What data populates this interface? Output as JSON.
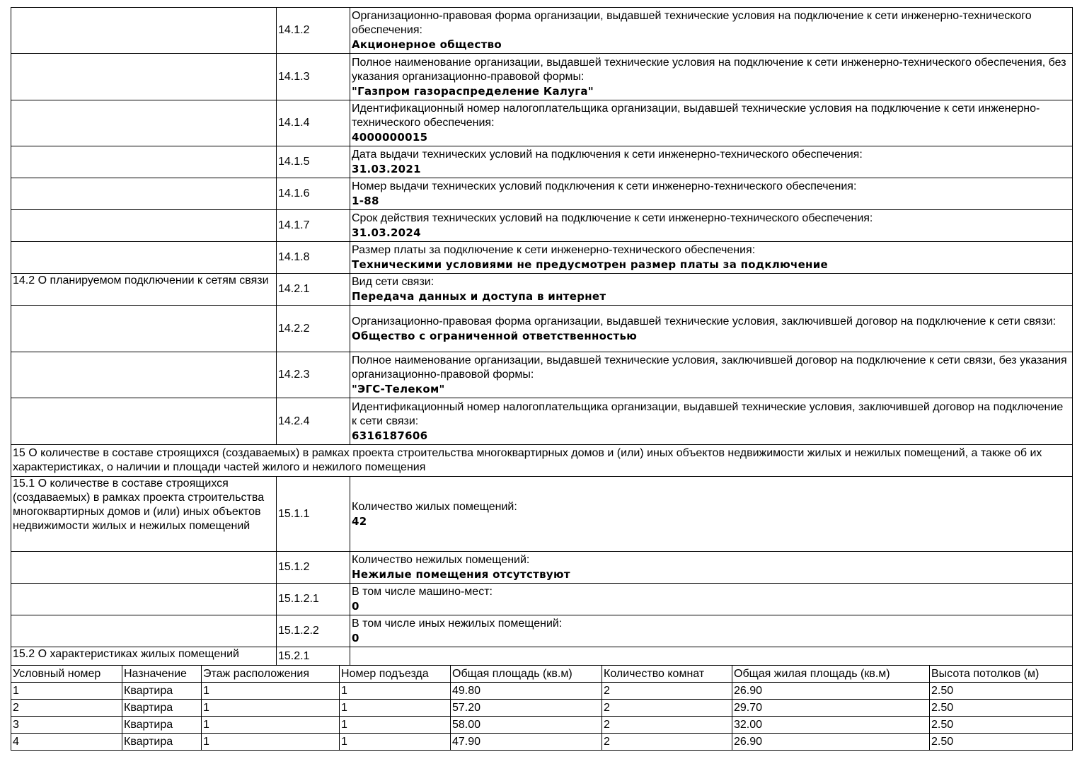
{
  "rows": [
    {
      "section": "",
      "code": "14.1.2",
      "label": "Организационно-правовая форма организации, выдавшей технические условия на подключение к сети инженерно-технического обеспечения:",
      "value": "Акционерное общество"
    },
    {
      "section": "",
      "code": "14.1.3",
      "label": "Полное наименование организации, выдавшей технические условия на подключение к сети инженерно-технического обеспечения, без указания организационно-правовой формы:",
      "value": "\"Газпром газораспределение Калуга\""
    },
    {
      "section": "",
      "code": "14.1.4",
      "label": "Идентификационный номер налогоплательщика организации, выдавшей технические условия на подключение к сети инженерно-технического обеспечения:",
      "value": "4000000015"
    },
    {
      "section": "",
      "code": "14.1.5",
      "label": "Дата выдачи технических условий на подключения к сети инженерно-технического обеспечения:",
      "value": "31.03.2021"
    },
    {
      "section": "",
      "code": "14.1.6",
      "label": "Номер выдачи технических условий подключения к сети инженерно-технического обеспечения:",
      "value": "1-88"
    },
    {
      "section": "",
      "code": "14.1.7",
      "label": "Срок действия технических условий на подключение к сети инженерно-технического обеспечения:",
      "value": "31.03.2024"
    },
    {
      "section": "",
      "code": "14.1.8",
      "label": "Размер платы за подключение к сети инженерно-технического обеспечения:",
      "value": "Техническими условиями не предусмотрен размер платы за подключение"
    },
    {
      "section": "14.2 О планируемом подключении к сетям связи",
      "code": "14.2.1",
      "label": "Вид сети связи:",
      "value": "Передача данных и доступа в интернет"
    },
    {
      "section": "",
      "code": "14.2.2",
      "label": "Организационно-правовая форма организации, выдавшей технические условия, заключившей договор на подключение к сети связи:",
      "value": "Общество с ограниченной ответственностью"
    },
    {
      "section": "",
      "code": "14.2.3",
      "label": "Полное наименование организации, выдавшей технические условия, заключившей договор на подключение к сети связи, без указания организационно-правовой формы:",
      "value": "\"ЭГС-Телеком\""
    },
    {
      "section": "",
      "code": "14.2.4",
      "label": "Идентификационный номер налогоплательщика организации, выдавшей технические условия, заключившей договор на подключение к сети связи:",
      "value": "6316187606"
    }
  ],
  "heading15": "15 О количестве в составе строящихся (создаваемых) в рамках проекта строительства многоквартирных домов и (или) иных объектов недвижимости жилых и нежилых помещений, а также об их характеристиках, о наличии и площади частей жилого и нежилого помещения",
  "rows15": [
    {
      "section": "15.1 О количестве в составе строящихся (создаваемых) в рамках проекта строительства многоквартирных домов и (или) иных объектов недвижимости жилых и нежилых помещений",
      "code": "15.1.1",
      "label": "Количество жилых помещений:",
      "value": "42"
    },
    {
      "section": "",
      "code": "15.1.2",
      "label": "Количество нежилых помещений:",
      "value": "Нежилые помещения отсутствуют"
    },
    {
      "section": "",
      "code": "15.1.2.1",
      "label": "В том числе машино-мест:",
      "value": "0"
    },
    {
      "section": "",
      "code": "15.1.2.2",
      "label": "В том числе иных нежилых помещений:",
      "value": "0"
    },
    {
      "section": "15.2 О характеристиках жилых помещений",
      "code": "15.2.1",
      "label": "",
      "value": ""
    }
  ],
  "flats": {
    "headers": [
      "Условный номер",
      "Назначение",
      "Этаж расположения",
      "Номер подъезда",
      "Общая площадь (кв.м)",
      "Количество комнат",
      "Общая жилая площадь (кв.м)",
      "Высота потолков (м)"
    ],
    "rows": [
      [
        "1",
        "Квартира",
        "1",
        "1",
        "49.80",
        "2",
        "26.90",
        "2.50"
      ],
      [
        "2",
        "Квартира",
        "1",
        "1",
        "57.20",
        "2",
        "29.70",
        "2.50"
      ],
      [
        "3",
        "Квартира",
        "1",
        "1",
        "58.00",
        "2",
        "32.00",
        "2.50"
      ],
      [
        "4",
        "Квартира",
        "1",
        "1",
        "47.90",
        "2",
        "26.90",
        "2.50"
      ]
    ]
  }
}
